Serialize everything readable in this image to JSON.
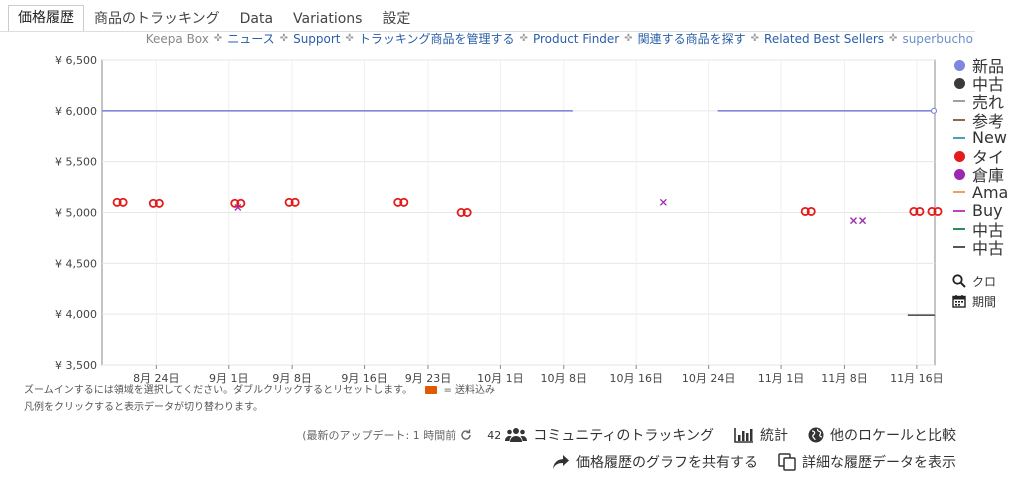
{
  "tabs": [
    "価格履歴",
    "商品のトラッキング",
    "Data",
    "Variations",
    "設定"
  ],
  "links": {
    "keepa_box": "Keepa Box",
    "items": [
      "ニュース",
      "Support",
      "トラッキング商品を管理する",
      "Product Finder",
      "関連する商品を探す",
      "Related Best Sellers"
    ],
    "user": "superbucho"
  },
  "legend": [
    {
      "label": "新品",
      "kind": "dot",
      "color": "#7f86db"
    },
    {
      "label": "中古",
      "kind": "dot",
      "color": "#3a3a3a"
    },
    {
      "label": "売れ",
      "kind": "dash",
      "color": "#a0a0a0"
    },
    {
      "label": "参考",
      "kind": "dash",
      "color": "#8a6a4a"
    },
    {
      "label": "New",
      "kind": "dash",
      "color": "#4aa0b8"
    },
    {
      "label": "タイ",
      "kind": "dot",
      "color": "#e31b1b"
    },
    {
      "label": "倉庫",
      "kind": "dot",
      "color": "#9c27b0"
    },
    {
      "label": "Ama",
      "kind": "dash",
      "color": "#f0a060"
    },
    {
      "label": "Buy",
      "kind": "dash",
      "color": "#c040c0"
    },
    {
      "label": "中古",
      "kind": "dash",
      "color": "#2e8b57"
    },
    {
      "label": "中古",
      "kind": "dash",
      "color": "#555555"
    }
  ],
  "tools": [
    {
      "label": "クロ",
      "icon": "search-icon"
    },
    {
      "label": "期間",
      "icon": "calendar-icon"
    }
  ],
  "notes": {
    "line1": "ズームインするには領域を選択してください。ダブルクリックするとリセットします。",
    "shipping": "= 送料込み",
    "line2": "凡例をクリックすると表示データが切り替わります。"
  },
  "actions": {
    "updated": "(最新のアップデート: 1 時間前",
    "count": "42",
    "community": "コミュニティのトラッキング",
    "stats": "統計",
    "compare": "他のロケールと比較",
    "share": "価格履歴のグラフを共有する",
    "details": "詳細な履歴データを表示"
  },
  "chart_data": {
    "type": "line",
    "yticks": [
      "¥ 6,500",
      "¥ 6,000",
      "¥ 5,500",
      "¥ 5,000",
      "¥ 4,500",
      "¥ 4,000",
      "¥ 3,500"
    ],
    "ylim": [
      3500,
      6500
    ],
    "xticks": [
      "8月 24日",
      "9月 1日",
      "9月 8日",
      "9月 16日",
      "9月 23日",
      "10月 1日",
      "10月 8日",
      "10月 16日",
      "10月 24日",
      "11月 1日",
      "11月 8日",
      "11月 16日"
    ],
    "x_day_range": [
      "Aug 18",
      "Nov 18"
    ],
    "series": [
      {
        "name": "新品",
        "style": "step-line",
        "color": "#7f86db",
        "segments": [
          {
            "from": "Aug 18",
            "to": "Oct 9",
            "value": 6000
          },
          {
            "from": "Oct 25",
            "to": "Nov 18",
            "value": 6000
          }
        ]
      },
      {
        "name": "タイ",
        "style": "circles",
        "color": "#e31b1b",
        "points": [
          {
            "x": "Aug 20",
            "y": 5100
          },
          {
            "x": "Aug 24",
            "y": 5090
          },
          {
            "x": "Sep 2",
            "y": 5090
          },
          {
            "x": "Sep 8",
            "y": 5100
          },
          {
            "x": "Sep 20",
            "y": 5100
          },
          {
            "x": "Sep 27",
            "y": 5000
          },
          {
            "x": "Nov 4",
            "y": 5010
          },
          {
            "x": "Nov 16",
            "y": 5010
          },
          {
            "x": "Nov 18",
            "y": 5010
          }
        ]
      },
      {
        "name": "倉庫",
        "style": "cross",
        "color": "#9c27b0",
        "points": [
          {
            "x": "Sep 2",
            "y": 5050
          },
          {
            "x": "Oct 19",
            "y": 5100
          },
          {
            "x": "Nov 9",
            "y": 4920
          },
          {
            "x": "Nov 10",
            "y": 4920
          }
        ]
      },
      {
        "name": "中古",
        "style": "step-line",
        "color": "#555555",
        "segments": [
          {
            "from": "Nov 15",
            "to": "Nov 18",
            "value": 3990
          }
        ]
      }
    ]
  }
}
